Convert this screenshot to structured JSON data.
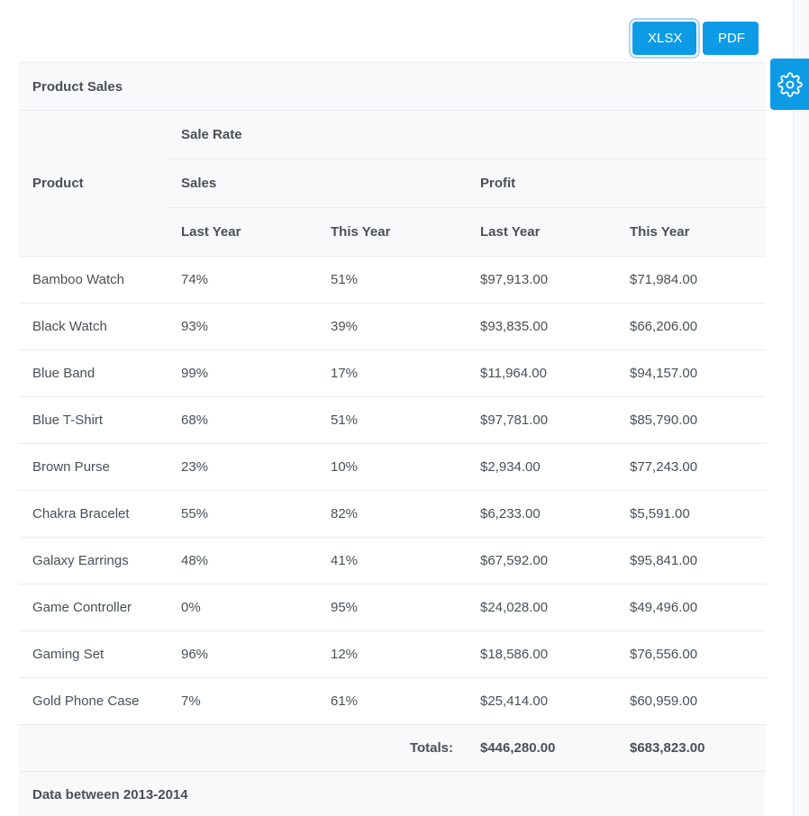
{
  "toolbar": {
    "xlsx_label": "XLSX",
    "pdf_label": "PDF"
  },
  "table": {
    "title": "Product Sales",
    "headers": {
      "product": "Product",
      "sale_rate": "Sale Rate",
      "sales": "Sales",
      "profit": "Profit",
      "sales_last_year": "Last Year",
      "sales_this_year": "This Year",
      "profit_last_year": "Last Year",
      "profit_this_year": "This Year"
    },
    "rows": [
      {
        "product": "Bamboo Watch",
        "sales_last": "74%",
        "sales_this": "51%",
        "profit_last": "$97,913.00",
        "profit_this": "$71,984.00"
      },
      {
        "product": "Black Watch",
        "sales_last": "93%",
        "sales_this": "39%",
        "profit_last": "$93,835.00",
        "profit_this": "$66,206.00"
      },
      {
        "product": "Blue Band",
        "sales_last": "99%",
        "sales_this": "17%",
        "profit_last": "$11,964.00",
        "profit_this": "$94,157.00"
      },
      {
        "product": "Blue T-Shirt",
        "sales_last": "68%",
        "sales_this": "51%",
        "profit_last": "$97,781.00",
        "profit_this": "$85,790.00"
      },
      {
        "product": "Brown Purse",
        "sales_last": "23%",
        "sales_this": "10%",
        "profit_last": "$2,934.00",
        "profit_this": "$77,243.00"
      },
      {
        "product": "Chakra Bracelet",
        "sales_last": "55%",
        "sales_this": "82%",
        "profit_last": "$6,233.00",
        "profit_this": "$5,591.00"
      },
      {
        "product": "Galaxy Earrings",
        "sales_last": "48%",
        "sales_this": "41%",
        "profit_last": "$67,592.00",
        "profit_this": "$95,841.00"
      },
      {
        "product": "Game Controller",
        "sales_last": "0%",
        "sales_this": "95%",
        "profit_last": "$24,028.00",
        "profit_this": "$49,496.00"
      },
      {
        "product": "Gaming Set",
        "sales_last": "96%",
        "sales_this": "12%",
        "profit_last": "$18,586.00",
        "profit_this": "$76,556.00"
      },
      {
        "product": "Gold Phone Case",
        "sales_last": "7%",
        "sales_this": "61%",
        "profit_last": "$25,414.00",
        "profit_this": "$60,959.00"
      }
    ],
    "totals": {
      "label": "Totals:",
      "profit_last": "$446,280.00",
      "profit_this": "$683,823.00"
    },
    "summary": "Data between 2013-2014"
  },
  "colors": {
    "accent": "#0d9be6",
    "header_bg": "#f8f9fa",
    "border": "#e9ecef",
    "text": "#495057"
  }
}
